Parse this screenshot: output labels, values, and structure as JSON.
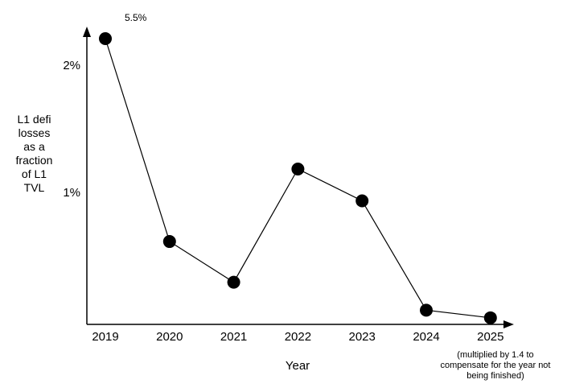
{
  "chart_data": {
    "type": "line",
    "x": [
      "2019",
      "2020",
      "2021",
      "2022",
      "2023",
      "2024",
      "2025"
    ],
    "values": [
      5.5,
      0.62,
      0.3,
      1.19,
      0.94,
      0.08,
      0.02
    ],
    "clipped_points": [
      {
        "x": "2019",
        "note": "plotted clipped at top of axis; actual value 5.5%"
      }
    ],
    "ylabel": "L1 defi\nlosses\nas a\nfraction\nof L1\nTVL",
    "xlabel": "Year",
    "yticks": [
      {
        "label": "2%",
        "value": 2
      },
      {
        "label": "1%",
        "value": 1
      }
    ],
    "annotations": [
      {
        "text": "5.5%",
        "x": "2019"
      }
    ],
    "note": "(multiplied by 1.4 to\ncompensate for the year not\nbeing finished)",
    "ylim": [
      0,
      2.3
    ],
    "grid": false,
    "legend": false,
    "line_color": "#000000",
    "point_color": "#000000",
    "background_color": "#ffffff"
  }
}
